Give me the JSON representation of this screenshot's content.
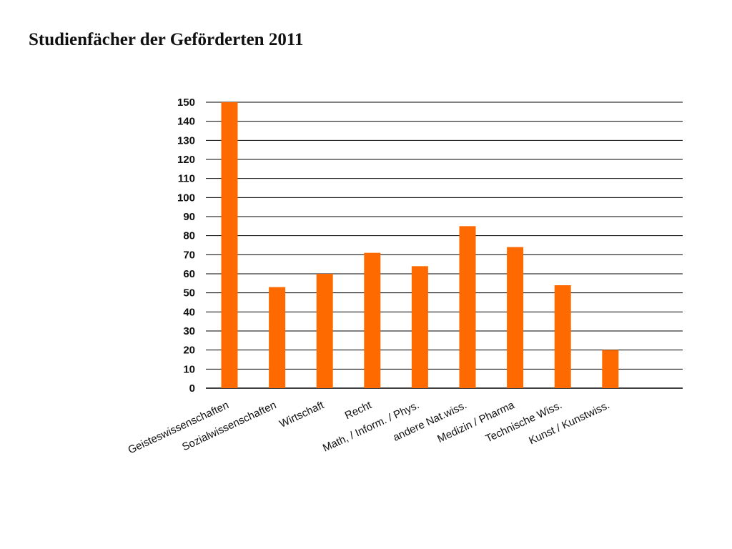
{
  "page": {
    "title": "Studienfächer der Geförderten 2011"
  },
  "chart_data": {
    "type": "bar",
    "title": "Studienfächer der Geförderten 2011",
    "xlabel": "",
    "ylabel": "",
    "ylim": [
      0,
      150
    ],
    "ytick_step": 10,
    "grid": true,
    "legend": "none",
    "bar_color": "#ff6a00",
    "categories": [
      "Geisteswissenschaften",
      "Sozialwissenschaften",
      "Wirtschaft",
      "Recht",
      "Math, / Inform. / Phys.",
      "andere Nat.wiss.",
      "Medizin / Pharma",
      "Technische Wiss.",
      "Kunst / Kunstwiss."
    ],
    "values": [
      150,
      53,
      60,
      71,
      64,
      85,
      74,
      54,
      20
    ]
  }
}
